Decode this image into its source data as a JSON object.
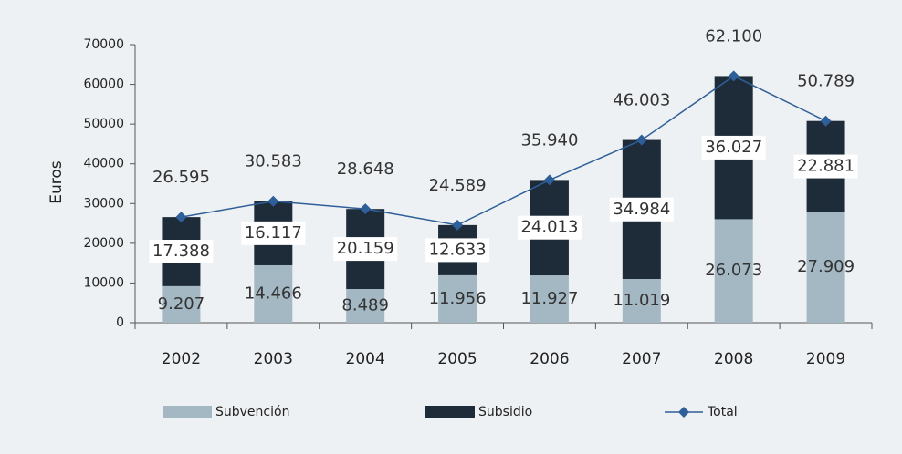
{
  "chart_data": {
    "type": "bar",
    "y_label": "Euros",
    "categories": [
      "2002",
      "2003",
      "2004",
      "2005",
      "2006",
      "2007",
      "2008",
      "2009"
    ],
    "series": [
      {
        "name": "Subvención",
        "type": "bar",
        "color": "#a3b8c3",
        "values": [
          9207,
          14466,
          8489,
          11956,
          11927,
          11019,
          26073,
          27909
        ],
        "value_labels": [
          "9.207",
          "14.466",
          "8.489",
          "11.956",
          "11.927",
          "11.019",
          "26.073",
          "27.909"
        ]
      },
      {
        "name": "Subsidio",
        "type": "bar",
        "color": "#1e2c39",
        "values": [
          17388,
          16117,
          20159,
          12633,
          24013,
          34984,
          36027,
          22881
        ],
        "value_labels": [
          "17.388",
          "16.117",
          "20.159",
          "12.633",
          "24.013",
          "34.984",
          "36.027",
          "22.881"
        ]
      },
      {
        "name": "Total",
        "type": "line",
        "color": "#2f5f99",
        "values": [
          26595,
          30583,
          28648,
          24589,
          35940,
          46003,
          62100,
          50789
        ],
        "value_labels": [
          "26.595",
          "30.583",
          "28.648",
          "24.589",
          "35.940",
          "46.003",
          "62.100",
          "50.789"
        ]
      }
    ],
    "ylim": [
      0,
      70000
    ],
    "yticks": [
      0,
      10000,
      20000,
      30000,
      40000,
      50000,
      60000,
      70000
    ],
    "grid": false,
    "legend": "bottom"
  }
}
